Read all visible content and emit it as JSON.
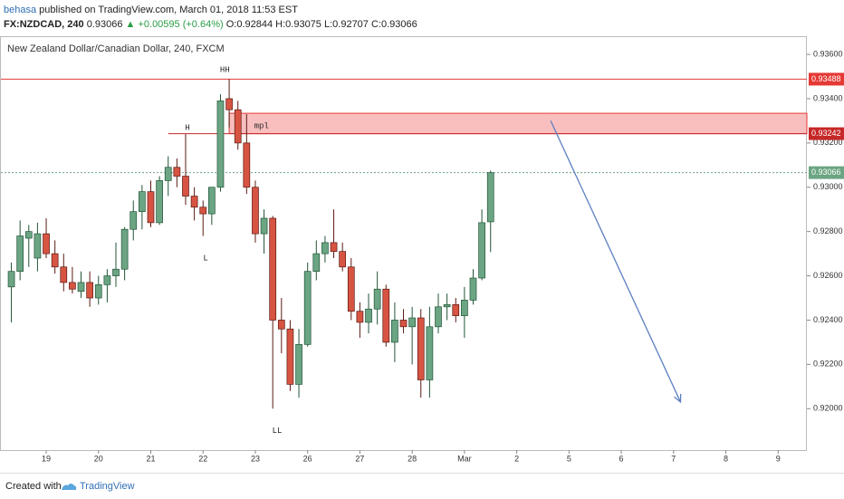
{
  "header": {
    "author": "behasa",
    "published": "published on TradingView.com, March 01, 2018 11:53 EST",
    "symbol": "FX:NZDCAD, 240",
    "price": "0.93066",
    "change": "+0.00595 (+0.64%)",
    "open": "O:0.92844",
    "high": "H:0.93075",
    "low": "L:0.92707",
    "close": "C:0.93066"
  },
  "footer": {
    "created": "Created with",
    "brand": "TradingView"
  },
  "chart_data": {
    "type": "candlestick",
    "title": "New Zealand Dollar/Canadian Dollar, 240, FXCM",
    "x": [
      0,
      1,
      2,
      3,
      4,
      5,
      6,
      7,
      8,
      9,
      10,
      11,
      12,
      13,
      14,
      15,
      16,
      17,
      18,
      19,
      20,
      21,
      22,
      23,
      24,
      25,
      26,
      27,
      28,
      29,
      30,
      31,
      32,
      33,
      34,
      35,
      36,
      37,
      38,
      39,
      40,
      41,
      42,
      43,
      44,
      45,
      46,
      47,
      48,
      49,
      50,
      51,
      52,
      53,
      54,
      55
    ],
    "open": [
      0.9255,
      0.9262,
      0.9277,
      0.9268,
      0.9279,
      0.927,
      0.9264,
      0.9257,
      0.9253,
      0.9257,
      0.925,
      0.9256,
      0.926,
      0.9263,
      0.9281,
      0.9289,
      0.9298,
      0.9284,
      0.9303,
      0.9309,
      0.9305,
      0.9296,
      0.9291,
      0.9288,
      0.93,
      0.934,
      0.9335,
      0.932,
      0.93,
      0.9279,
      0.9286,
      0.924,
      0.9236,
      0.9211,
      0.9229,
      0.9262,
      0.927,
      0.9275,
      0.9271,
      0.9264,
      0.9244,
      0.9239,
      0.9245,
      0.9254,
      0.923,
      0.924,
      0.9237,
      0.9241,
      0.9213,
      0.9237,
      0.9246,
      0.9247,
      0.9242,
      0.9249,
      0.9259,
      0.92844
    ],
    "high": [
      0.9266,
      0.9285,
      0.9283,
      0.9284,
      0.9286,
      0.9276,
      0.927,
      0.9264,
      0.9262,
      0.9262,
      0.926,
      0.9263,
      0.9275,
      0.9282,
      0.9294,
      0.9301,
      0.9303,
      0.9305,
      0.9314,
      0.9313,
      0.9324,
      0.93,
      0.9294,
      0.93,
      0.9342,
      0.93488,
      0.9339,
      0.9333,
      0.9303,
      0.929,
      0.9287,
      0.925,
      0.924,
      0.9236,
      0.9266,
      0.9276,
      0.9278,
      0.929,
      0.9275,
      0.9268,
      0.9248,
      0.9252,
      0.9262,
      0.9256,
      0.9248,
      0.9245,
      0.9246,
      0.9245,
      0.9246,
      0.9252,
      0.9252,
      0.925,
      0.9255,
      0.9263,
      0.929,
      0.93075
    ],
    "low": [
      0.9239,
      0.9258,
      0.9264,
      0.9262,
      0.9268,
      0.9261,
      0.9253,
      0.9252,
      0.925,
      0.9246,
      0.9247,
      0.9248,
      0.9255,
      0.9258,
      0.9276,
      0.9281,
      0.9282,
      0.9283,
      0.9296,
      0.93,
      0.9292,
      0.9285,
      0.9278,
      0.9283,
      0.9298,
      0.9327,
      0.9317,
      0.9297,
      0.9275,
      0.927,
      0.92,
      0.9225,
      0.9208,
      0.9205,
      0.9228,
      0.9258,
      0.9266,
      0.9268,
      0.9262,
      0.924,
      0.9232,
      0.9234,
      0.9238,
      0.9228,
      0.9221,
      0.9234,
      0.922,
      0.9205,
      0.9205,
      0.9234,
      0.924,
      0.9239,
      0.9232,
      0.9247,
      0.9258,
      0.92707
    ],
    "close": [
      0.9262,
      0.9278,
      0.928,
      0.9279,
      0.927,
      0.9264,
      0.9257,
      0.9254,
      0.9257,
      0.925,
      0.9256,
      0.926,
      0.9263,
      0.9281,
      0.9289,
      0.9298,
      0.9284,
      0.9303,
      0.9309,
      0.9305,
      0.9296,
      0.9291,
      0.9288,
      0.93,
      0.9339,
      0.9335,
      0.932,
      0.93,
      0.9279,
      0.9286,
      0.924,
      0.9236,
      0.9211,
      0.9229,
      0.9262,
      0.927,
      0.9275,
      0.9271,
      0.9264,
      0.9244,
      0.9239,
      0.9245,
      0.9254,
      0.923,
      0.924,
      0.9237,
      0.9241,
      0.9213,
      0.9237,
      0.9246,
      0.9247,
      0.9242,
      0.9249,
      0.9259,
      0.9284,
      0.93066
    ],
    "up_color": "#6ba583",
    "down_color": "#d75442",
    "xlim": [
      -1.2,
      91.3
    ],
    "xticks": [
      {
        "value": 4,
        "label": "19"
      },
      {
        "value": 10,
        "label": "20"
      },
      {
        "value": 16,
        "label": "21"
      },
      {
        "value": 22,
        "label": "22"
      },
      {
        "value": 28,
        "label": "23"
      },
      {
        "value": 34,
        "label": "26"
      },
      {
        "value": 40,
        "label": "27"
      },
      {
        "value": 46,
        "label": "28"
      },
      {
        "value": 52,
        "label": "Mar"
      },
      {
        "value": 58,
        "label": "2"
      },
      {
        "value": 64,
        "label": "5"
      },
      {
        "value": 70,
        "label": "6"
      },
      {
        "value": 76,
        "label": "7"
      },
      {
        "value": 82,
        "label": "8"
      },
      {
        "value": 88,
        "label": "9"
      }
    ],
    "ylim": [
      0.91813,
      0.93682
    ],
    "yticks": [
      {
        "value": 0.936,
        "label": "0.93600"
      },
      {
        "value": 0.934,
        "label": "0.93400"
      },
      {
        "value": 0.932,
        "label": "0.93200"
      },
      {
        "value": 0.93,
        "label": "0.93000"
      },
      {
        "value": 0.928,
        "label": "0.92800"
      },
      {
        "value": 0.926,
        "label": "0.92600"
      },
      {
        "value": 0.924,
        "label": "0.92400"
      },
      {
        "value": 0.922,
        "label": "0.92200"
      },
      {
        "value": 0.92,
        "label": "0.92000"
      }
    ],
    "lines": [
      {
        "value": 0.93488,
        "label": "0.93488",
        "color": "#e53935",
        "x_start": -1.2
      },
      {
        "value": 0.93242,
        "label": "0.93242",
        "color": "#c62828",
        "x_start": 18
      },
      {
        "value": 0.93066,
        "label": "0.93066",
        "color": "#6ba583",
        "x_start": -1.2,
        "dotted": true
      }
    ],
    "zone": {
      "from": 0.93242,
      "to": 0.93334,
      "x_start": 25,
      "color": "#f8b4b4",
      "edge": "#e53935"
    },
    "arrow": {
      "x": [
        61.9,
        76.8
      ],
      "y": [
        0.933,
        0.9203
      ],
      "color": "#5b7fc0"
    },
    "annotations": [
      {
        "text": "HH",
        "x": 24.5,
        "y": 0.9353
      },
      {
        "text": "H",
        "x": 20.2,
        "y": 0.93269
      },
      {
        "text": "mpl",
        "x": 28.7,
        "y": 0.93277
      },
      {
        "text": "L",
        "x": 22.3,
        "y": 0.9268
      },
      {
        "text": "LL",
        "x": 30.5,
        "y": 0.919
      }
    ]
  }
}
